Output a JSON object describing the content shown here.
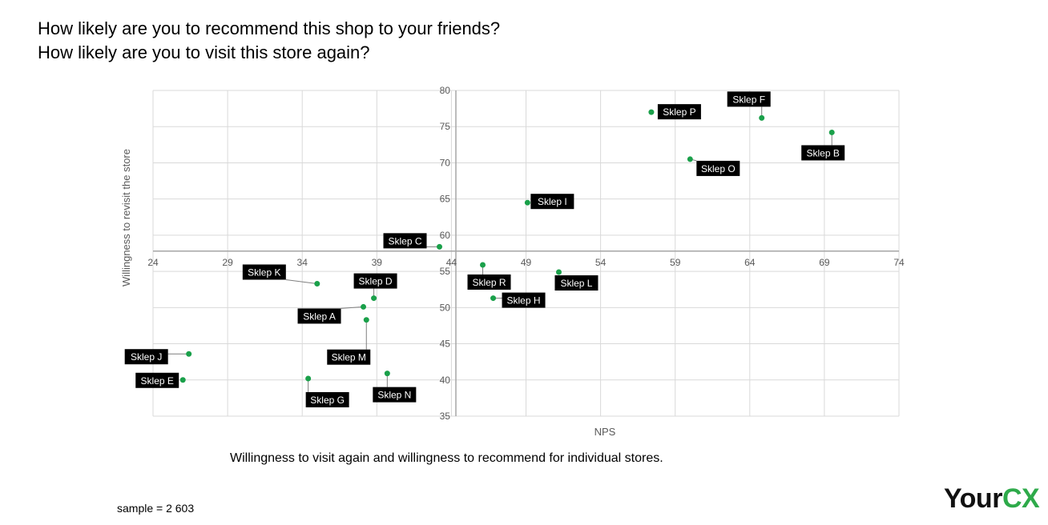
{
  "header": {
    "question_1": "How likely are you to recommend this shop to your friends?",
    "question_2": "How likely are you to visit this store again?"
  },
  "caption": "Willingness to visit again and willingness to recommend for individual stores.",
  "sample_note": "sample = 2 603",
  "logo": {
    "part1": "Your",
    "part2": "CX",
    "color_dark": "#111111",
    "color_accent": "#2eaa4a"
  },
  "colors": {
    "point": "#1aa04a",
    "label_bg": "#000000",
    "label_text": "#ffffff",
    "grid": "#d9d9d9",
    "axis": "#a6a6a6"
  },
  "chart_data": {
    "type": "scatter",
    "xlabel": "NPS",
    "ylabel": "Willingness to revisit the store",
    "xlim": [
      24,
      74
    ],
    "ylim": [
      35,
      80
    ],
    "x_ticks": [
      24,
      29,
      34,
      39,
      44,
      49,
      54,
      59,
      64,
      69,
      74
    ],
    "y_ticks": [
      35,
      40,
      45,
      50,
      55,
      60,
      65,
      70,
      75,
      80
    ],
    "x_axis_crosses_y_at": 57.8,
    "y_axis_crosses_x_at": 44.3,
    "grid": true,
    "points": [
      {
        "label": "Sklep A",
        "x": 38.1,
        "y": 50.1
      },
      {
        "label": "Sklep B",
        "x": 69.5,
        "y": 74.2
      },
      {
        "label": "Sklep C",
        "x": 43.2,
        "y": 58.4
      },
      {
        "label": "Sklep D",
        "x": 38.8,
        "y": 51.3
      },
      {
        "label": "Sklep E",
        "x": 26.0,
        "y": 40.0
      },
      {
        "label": "Sklep F",
        "x": 64.8,
        "y": 76.2
      },
      {
        "label": "Sklep G",
        "x": 34.4,
        "y": 40.2
      },
      {
        "label": "Sklep H",
        "x": 46.8,
        "y": 51.3
      },
      {
        "label": "Sklep I",
        "x": 49.1,
        "y": 64.5
      },
      {
        "label": "Sklep J",
        "x": 26.4,
        "y": 43.6
      },
      {
        "label": "Sklep K",
        "x": 35.0,
        "y": 53.3
      },
      {
        "label": "Sklep L",
        "x": 51.2,
        "y": 54.9
      },
      {
        "label": "Sklep M",
        "x": 38.3,
        "y": 48.3
      },
      {
        "label": "Sklep N",
        "x": 39.7,
        "y": 40.9
      },
      {
        "label": "Sklep O",
        "x": 60.0,
        "y": 70.5
      },
      {
        "label": "Sklep P",
        "x": 57.4,
        "y": 77.0
      },
      {
        "label": "Sklep R",
        "x": 46.1,
        "y": 55.9
      }
    ]
  }
}
